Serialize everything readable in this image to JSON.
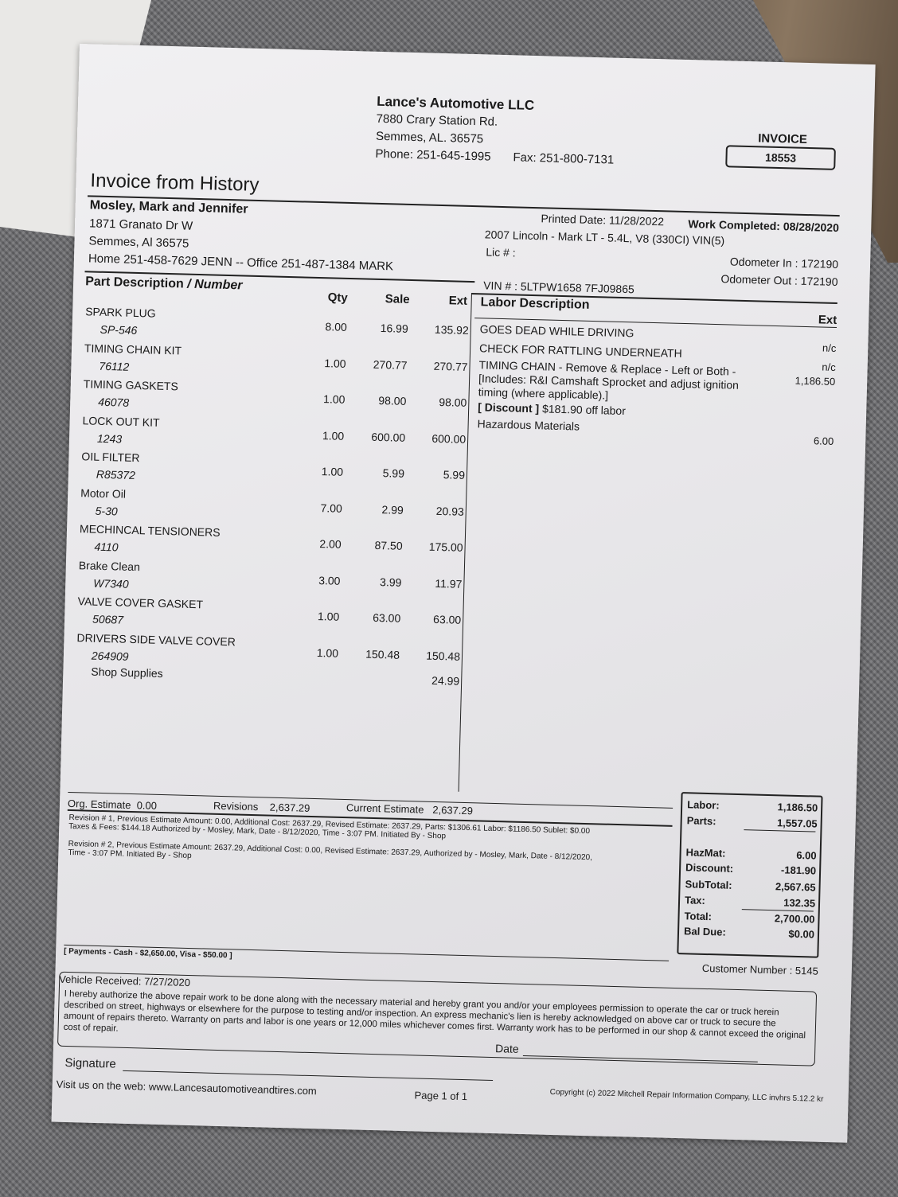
{
  "shop": {
    "name": "Lance's Automotive LLC",
    "address1": "7880 Crary Station Rd.",
    "address2": "Semmes, AL.  36575",
    "phone": "Phone: 251-645-1995",
    "fax": "Fax: 251-800-7131"
  },
  "invoice": {
    "label": "INVOICE",
    "number": "18553"
  },
  "doc_title": "Invoice from History",
  "customer": {
    "name": "Mosley, Mark and Jennifer",
    "street": "1871 Granato Dr W",
    "city": "Semmes, Al    36575",
    "phones": "Home  251-458-7629 JENN   --  Office  251-487-1384 MARK"
  },
  "dates": {
    "printed": "Printed Date: 11/28/2022",
    "completed": "Work Completed: 08/28/2020"
  },
  "vehicle": {
    "description": "2007 Lincoln - Mark LT - 5.4L, V8 (330CI) VIN(5)",
    "lic": "Lic # :",
    "odometer_in": "Odometer In :  172190",
    "odometer_out": "Odometer Out :  172190",
    "vin": "VIN # :  5LTPW1658 7FJ09865"
  },
  "parts_header": {
    "desc": "Part Description",
    "number": " / Number",
    "qty": "Qty",
    "sale": "Sale",
    "ext": "Ext"
  },
  "parts": [
    {
      "name": "SPARK PLUG",
      "number": "SP-546",
      "qty": "8.00",
      "sale": "16.99",
      "ext": "135.92"
    },
    {
      "name": "TIMING CHAIN KIT",
      "number": "76112",
      "qty": "1.00",
      "sale": "270.77",
      "ext": "270.77"
    },
    {
      "name": "TIMING GASKETS",
      "number": "46078",
      "qty": "1.00",
      "sale": "98.00",
      "ext": "98.00"
    },
    {
      "name": "LOCK OUT KIT",
      "number": "1243",
      "qty": "1.00",
      "sale": "600.00",
      "ext": "600.00"
    },
    {
      "name": "OIL FILTER",
      "number": "R85372",
      "qty": "1.00",
      "sale": "5.99",
      "ext": "5.99"
    },
    {
      "name": "Motor Oil",
      "number": "5-30",
      "qty": "7.00",
      "sale": "2.99",
      "ext": "20.93"
    },
    {
      "name": "MECHINCAL TENSIONERS",
      "number": "4110",
      "qty": "2.00",
      "sale": "87.50",
      "ext": "175.00"
    },
    {
      "name": "Brake Clean",
      "number": "W7340",
      "qty": "3.00",
      "sale": "3.99",
      "ext": "11.97"
    },
    {
      "name": "VALVE COVER GASKET",
      "number": "50687",
      "qty": "1.00",
      "sale": "63.00",
      "ext": "63.00"
    },
    {
      "name": "DRIVERS SIDE VALVE COVER",
      "number": "264909",
      "qty": "1.00",
      "sale": "150.48",
      "ext": "150.48"
    }
  ],
  "shop_supplies": {
    "label": "Shop Supplies",
    "ext": "24.99"
  },
  "labor_header": {
    "desc": "Labor Description",
    "ext": "Ext"
  },
  "labor": {
    "line1": "GOES DEAD WHILE DRIVING",
    "ext1": "n/c",
    "line2": "CHECK FOR RATTLING UNDERNEATH",
    "ext2": "n/c",
    "line3a": "TIMING CHAIN - Remove & Replace - Left or Both -",
    "line3b": "[Includes: R&I Camshaft Sprocket and adjust ignition",
    "line3c": "timing (where applicable).]",
    "ext3": "1,186.50",
    "discount_tag": "[ Discount ]",
    "discount_text": "$181.90 off labor",
    "line4": "Hazardous Materials",
    "ext4": "6.00"
  },
  "estimate": {
    "org_label": "Org. Estimate",
    "org_value": "0.00",
    "rev_label": "Revisions",
    "rev_value": "2,637.29",
    "cur_label": "Current Estimate",
    "cur_value": "2,637.29"
  },
  "revisions": {
    "r1a": "Revision # 1, Previous Estimate Amount: 0.00, Additional Cost: 2637.29, Revised Estimate: 2637.29, Parts: $1306.61 Labor: $1186.50 Sublet: $0.00",
    "r1b": "Taxes & Fees: $144.18 Authorized by - Mosley, Mark, Date - 8/12/2020, Time - 3:07 PM. Initiated By - Shop",
    "r2a": "Revision # 2, Previous Estimate Amount: 2637.29, Additional Cost: 0.00, Revised Estimate: 2637.29,  Authorized by - Mosley, Mark, Date - 8/12/2020,",
    "r2b": "Time - 3:07 PM. Initiated By - Shop"
  },
  "payments": "[ Payments - Cash - $2,650.00, Visa - $50.00 ]",
  "totals": [
    {
      "label": "Labor:",
      "value": "1,186.50"
    },
    {
      "label": "Parts:",
      "value": "1,557.05"
    },
    {
      "label": "HazMat:",
      "value": "6.00"
    },
    {
      "label": "Discount:",
      "value": "-181.90"
    },
    {
      "label": "SubTotal:",
      "value": "2,567.65"
    },
    {
      "label": "Tax:",
      "value": "132.35"
    },
    {
      "label": "Total:",
      "value": "2,700.00"
    },
    {
      "label": "Bal Due:",
      "value": "$0.00"
    }
  ],
  "customer_number": "Customer Number : 5145",
  "vehicle_received": "Vehicle Received: 7/27/2020",
  "terms": "I hereby authorize the above repair work to be done along with the necessary material and hereby grant you and/or your employees permission to operate the car or truck herein described on street, highways or elsewhere for the purpose to testing and/or inspection.  An express mechanic's lien is hereby acknowledged on above car or truck to secure the amount of repairs thereto. Warranty on parts and labor is one years or 12,000 miles whichever comes first.  Warranty work has to be performed in our shop & cannot exceed the original cost of repair.",
  "date_label": "Date",
  "signature_label": "Signature",
  "footer": {
    "web": "Visit us on the web:  www.Lancesautomotiveandtires.com",
    "page": "Page 1 of 1",
    "copyright": "Copyright (c) 2022 Mitchell Repair Information Company, LLC  invhrs 5.12.2 kr"
  }
}
